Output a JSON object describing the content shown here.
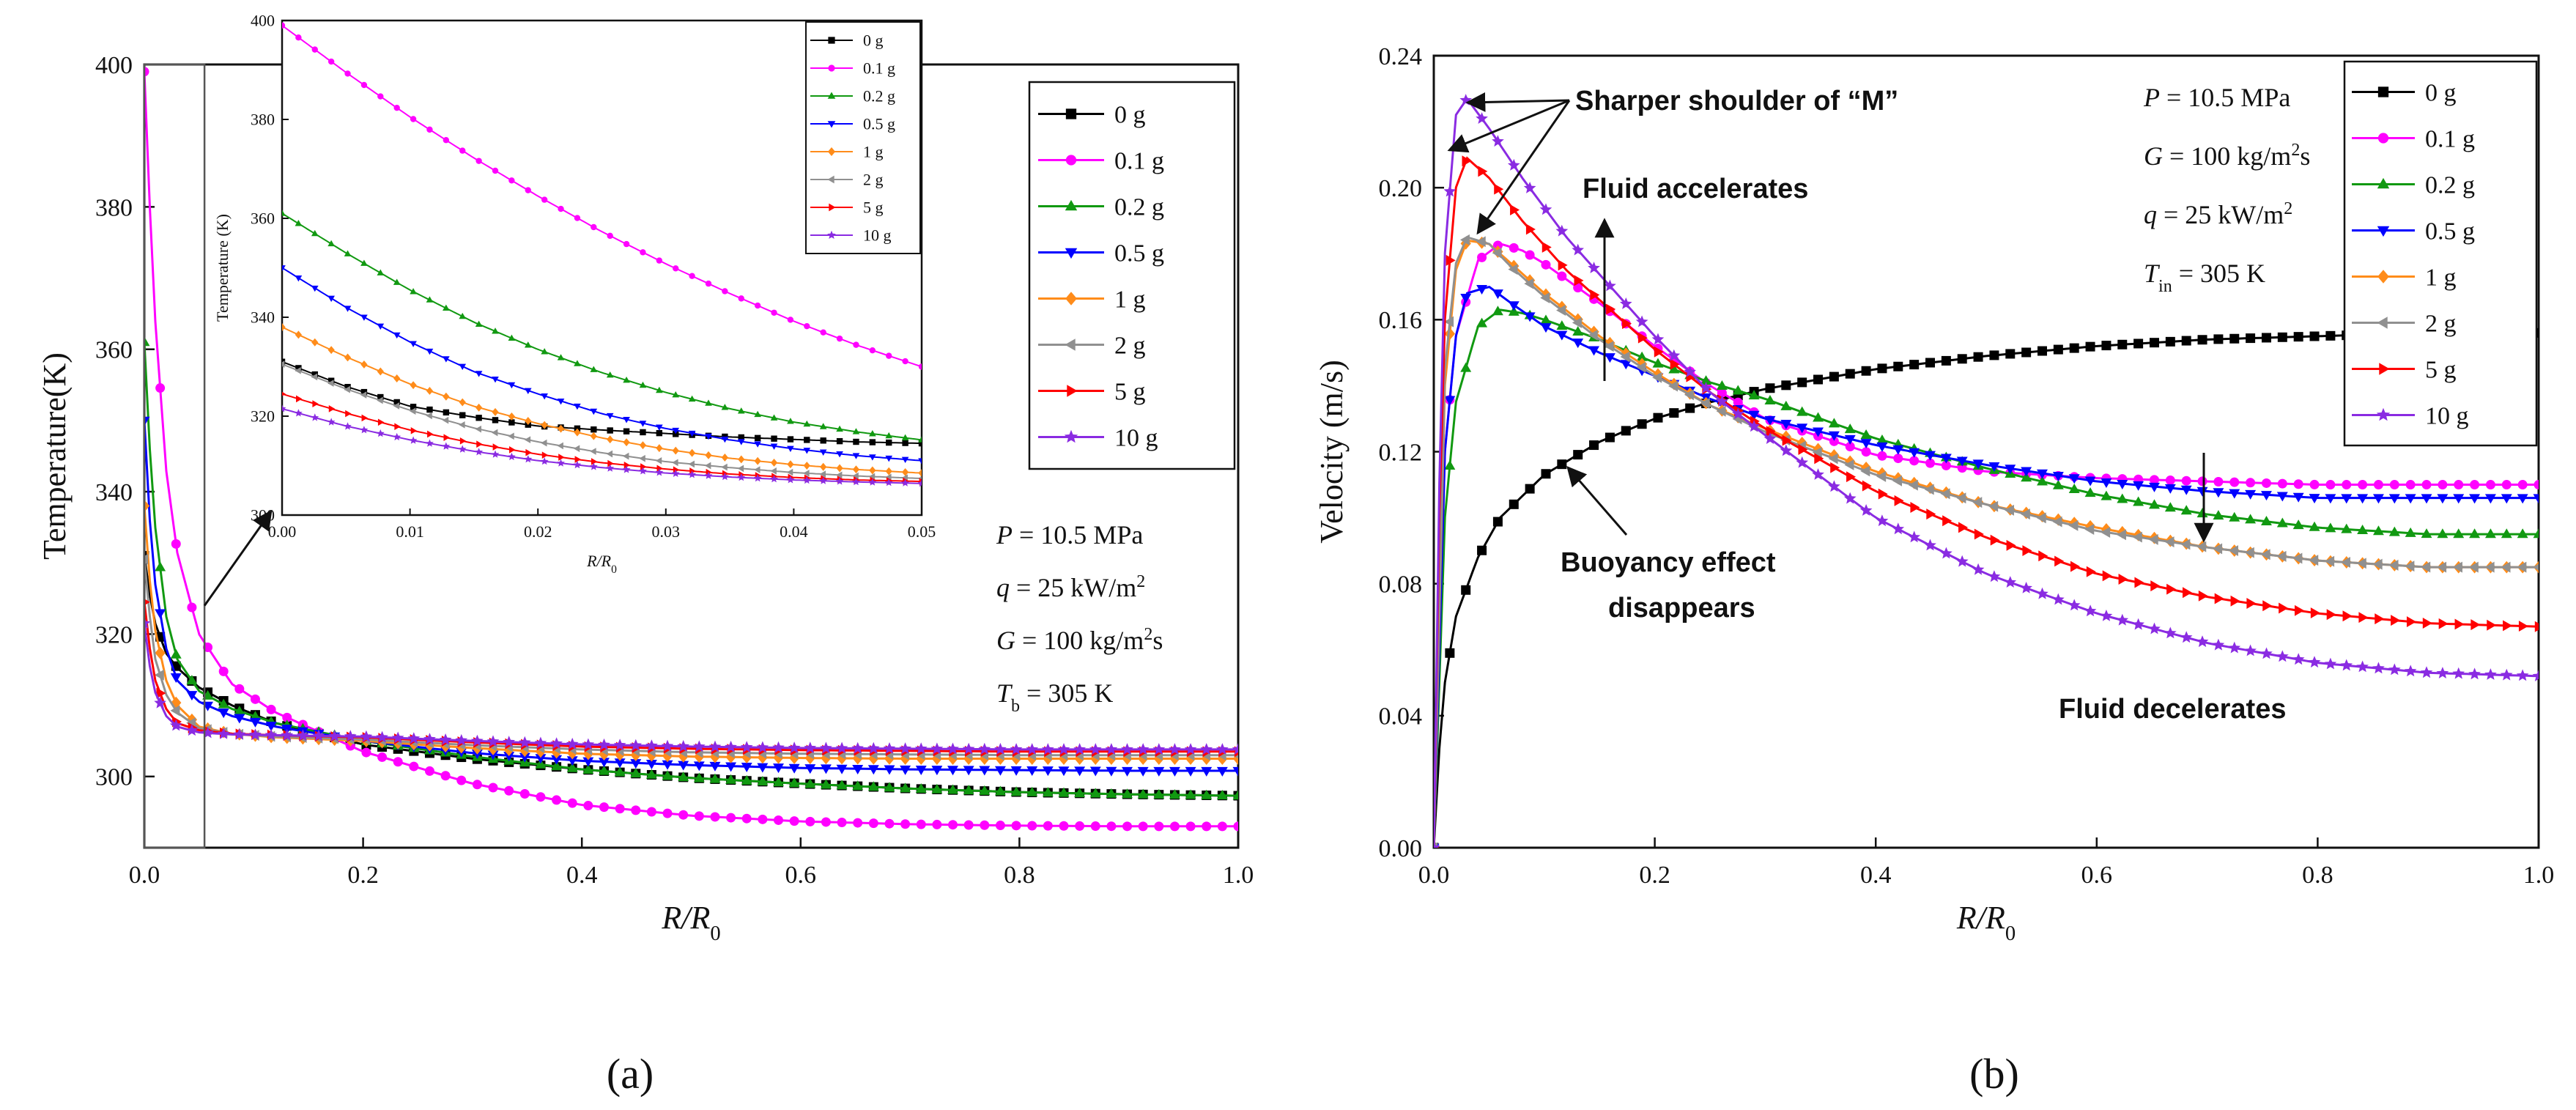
{
  "colors": {
    "0 g": "#000000",
    "0.1 g": "#ff00ff",
    "0.2 g": "#119911",
    "0.5 g": "#0000ff",
    "1 g": "#ff8c1a",
    "2 g": "#909090",
    "5 g": "#ff0000",
    "10 g": "#8a2be2"
  },
  "markers": {
    "0 g": "square",
    "0.1 g": "circle",
    "0.2 g": "triangle-up",
    "0.5 g": "triangle-down",
    "1 g": "diamond",
    "2 g": "triangle-left",
    "5 g": "triangle-right",
    "10 g": "star"
  },
  "captions": {
    "a": "(a)",
    "b": "(b)"
  },
  "chart_data": [
    {
      "id": "a",
      "type": "line",
      "title": "",
      "xlabel": "R/R0",
      "xlabel_main": "R/R",
      "xlabel_sub": "0",
      "ylabel": "Temperature(K)",
      "xlim": [
        0,
        1.0
      ],
      "ylim": [
        290,
        400
      ],
      "xticks": [
        "0.0",
        "0.2",
        "0.4",
        "0.6",
        "0.8",
        "1.0"
      ],
      "yticks": [
        "300",
        "320",
        "340",
        "360",
        "380",
        "400"
      ],
      "legend": [
        "0 g",
        "0.1 g",
        "0.2 g",
        "0.5 g",
        "1 g",
        "2 g",
        "5 g",
        "10 g"
      ],
      "legend_position": "top-right",
      "params": [
        {
          "sym": "P",
          "sub": "",
          "sup": "",
          "rest": " = 10.5 MPa"
        },
        {
          "sym": "q",
          "sub": "",
          "sup": "2",
          "rest": " = 25 kW/m"
        },
        {
          "sym": "G",
          "sub": "",
          "sup": "2",
          "rest": " = 100 kg/m",
          "tail": "s"
        },
        {
          "sym": "T",
          "sub": "b",
          "sup": "",
          "rest": " = 305 K"
        }
      ],
      "series": [
        {
          "name": "0 g",
          "x": [
            0,
            0.005,
            0.01,
            0.02,
            0.03,
            0.05,
            0.08,
            0.12,
            0.2,
            0.3,
            0.4,
            0.5,
            0.6,
            0.7,
            0.8,
            0.9,
            1.0
          ],
          "y": [
            331,
            325.5,
            321.5,
            317.3,
            315.3,
            312.5,
            310,
            307.5,
            304.5,
            302.5,
            301,
            299.8,
            299,
            298.3,
            297.8,
            297.5,
            297.3
          ]
        },
        {
          "name": "0.1 g",
          "x": [
            0,
            0.005,
            0.01,
            0.02,
            0.03,
            0.05,
            0.08,
            0.12,
            0.2,
            0.3,
            0.4,
            0.5,
            0.6,
            0.7,
            0.8,
            0.9,
            1.0
          ],
          "y": [
            399,
            380,
            364,
            343,
            331.5,
            320,
            313,
            309,
            303.5,
            299,
            296,
            294.5,
            293.7,
            293.3,
            293.1,
            293,
            293
          ]
        },
        {
          "name": "0.2 g",
          "x": [
            0,
            0.005,
            0.01,
            0.02,
            0.03,
            0.05,
            0.08,
            0.12,
            0.2,
            0.3,
            0.4,
            0.5,
            0.6,
            0.7,
            0.8,
            0.9,
            1.0
          ],
          "y": [
            361,
            346,
            335,
            322.5,
            316.5,
            312,
            309.5,
            307.5,
            305,
            302.8,
            301,
            299.8,
            299,
            298.3,
            297.8,
            297.5,
            297.3
          ]
        },
        {
          "name": "0.5 g",
          "x": [
            0,
            0.005,
            0.01,
            0.02,
            0.03,
            0.05,
            0.08,
            0.12,
            0.2,
            0.3,
            0.4,
            0.5,
            0.6,
            0.7,
            0.8,
            0.9,
            1.0
          ],
          "y": [
            350,
            336,
            327,
            318,
            313.5,
            310.5,
            308.5,
            307,
            305,
            303.3,
            302.2,
            301.6,
            301.2,
            301,
            300.9,
            300.8,
            300.8
          ]
        },
        {
          "name": "1 g",
          "x": [
            0,
            0.005,
            0.01,
            0.02,
            0.03,
            0.05,
            0.08,
            0.12,
            0.2,
            0.3,
            0.4,
            0.5,
            0.6,
            0.7,
            0.8,
            0.9,
            1.0
          ],
          "y": [
            338,
            327.5,
            320.5,
            313.5,
            310,
            307,
            306,
            305.5,
            305,
            304,
            303.2,
            302.8,
            302.6,
            302.5,
            302.5,
            302.5,
            302.5
          ]
        },
        {
          "name": "2 g",
          "x": [
            0,
            0.005,
            0.01,
            0.02,
            0.03,
            0.05,
            0.08,
            0.12,
            0.2,
            0.3,
            0.4,
            0.5,
            0.6,
            0.7,
            0.8,
            0.9,
            1.0
          ],
          "y": [
            330.5,
            322.5,
            316.5,
            311.5,
            309,
            306.8,
            306,
            305.6,
            305.2,
            304.4,
            303.8,
            303.4,
            303.2,
            303.1,
            303,
            303,
            303
          ]
        },
        {
          "name": "5 g",
          "x": [
            0,
            0.005,
            0.01,
            0.02,
            0.03,
            0.05,
            0.08,
            0.12,
            0.2,
            0.3,
            0.4,
            0.5,
            0.6,
            0.7,
            0.8,
            0.9,
            1.0
          ],
          "y": [
            324.5,
            318,
            313.5,
            309.5,
            307.5,
            306.5,
            306,
            305.8,
            305.5,
            304.8,
            304.2,
            303.9,
            303.7,
            303.6,
            303.5,
            303.5,
            303.5
          ]
        },
        {
          "name": "10 g",
          "x": [
            0,
            0.005,
            0.01,
            0.02,
            0.03,
            0.05,
            0.08,
            0.12,
            0.2,
            0.3,
            0.4,
            0.5,
            0.6,
            0.7,
            0.8,
            0.9,
            1.0
          ],
          "y": [
            321.5,
            315.5,
            311.8,
            308.5,
            307,
            306.2,
            305.9,
            305.8,
            305.6,
            305,
            304.5,
            304.2,
            304,
            303.9,
            303.8,
            303.8,
            303.8
          ]
        }
      ]
    },
    {
      "id": "a-inset",
      "type": "line",
      "title": "",
      "xlabel": "R/R0",
      "xlabel_main": "R/R",
      "xlabel_sub": "0",
      "ylabel": "Temperature (K)",
      "xlim": [
        0,
        0.05
      ],
      "ylim": [
        300,
        400
      ],
      "xticks": [
        "0.00",
        "0.01",
        "0.02",
        "0.03",
        "0.04",
        "0.05"
      ],
      "yticks": [
        "300",
        "320",
        "340",
        "360",
        "380",
        "400"
      ],
      "legend": [
        "0 g",
        "0.1 g",
        "0.2 g",
        "0.5 g",
        "1 g",
        "2 g",
        "5 g",
        "10 g"
      ],
      "legend_position": "top-right",
      "series": [
        {
          "name": "0 g",
          "x": [
            0,
            0.005,
            0.01,
            0.015,
            0.02,
            0.025,
            0.03,
            0.035,
            0.04,
            0.045,
            0.05
          ],
          "y": [
            331,
            326,
            322,
            319.8,
            318,
            317.2,
            316.5,
            315.8,
            315.3,
            314.8,
            314.5
          ]
        },
        {
          "name": "0.1 g",
          "x": [
            0,
            0.005,
            0.01,
            0.015,
            0.02,
            0.025,
            0.03,
            0.035,
            0.04,
            0.045,
            0.05
          ],
          "y": [
            399,
            389.5,
            380.5,
            372.2,
            364.5,
            357.3,
            350.8,
            344.8,
            339.2,
            334.3,
            330
          ]
        },
        {
          "name": "0.2 g",
          "x": [
            0,
            0.005,
            0.01,
            0.015,
            0.02,
            0.025,
            0.03,
            0.035,
            0.04,
            0.045,
            0.05
          ],
          "y": [
            361,
            353,
            345.5,
            339,
            333.5,
            328.8,
            324.8,
            321.5,
            318.8,
            316.8,
            315.2
          ]
        },
        {
          "name": "0.5 g",
          "x": [
            0,
            0.005,
            0.01,
            0.015,
            0.02,
            0.025,
            0.03,
            0.035,
            0.04,
            0.045,
            0.05
          ],
          "y": [
            350,
            342,
            335,
            329,
            324.5,
            320.5,
            317.5,
            315.2,
            313.4,
            312,
            311
          ]
        },
        {
          "name": "1 g",
          "x": [
            0,
            0.005,
            0.01,
            0.015,
            0.02,
            0.025,
            0.03,
            0.035,
            0.04,
            0.045,
            0.05
          ],
          "y": [
            338,
            332,
            326.5,
            322,
            318.5,
            315.6,
            313.3,
            311.5,
            310.2,
            309.2,
            308.5
          ]
        },
        {
          "name": "2 g",
          "x": [
            0,
            0.005,
            0.01,
            0.015,
            0.02,
            0.025,
            0.03,
            0.035,
            0.04,
            0.045,
            0.05
          ],
          "y": [
            330.5,
            325.5,
            321.2,
            317.6,
            314.8,
            312.6,
            310.8,
            309.6,
            308.6,
            307.9,
            307.4
          ]
        },
        {
          "name": "5 g",
          "x": [
            0,
            0.005,
            0.01,
            0.015,
            0.02,
            0.025,
            0.03,
            0.035,
            0.04,
            0.045,
            0.05
          ],
          "y": [
            324.5,
            320.6,
            317.2,
            314.5,
            312.3,
            310.6,
            309.3,
            308.3,
            307.6,
            307.1,
            306.8
          ]
        },
        {
          "name": "10 g",
          "x": [
            0,
            0.005,
            0.01,
            0.015,
            0.02,
            0.025,
            0.03,
            0.035,
            0.04,
            0.045,
            0.05
          ],
          "y": [
            321.5,
            318,
            315.2,
            312.9,
            311,
            309.6,
            308.5,
            307.7,
            307.1,
            306.7,
            306.4
          ]
        }
      ]
    },
    {
      "id": "b",
      "type": "line",
      "title": "",
      "xlabel": "R/R0",
      "xlabel_main": "R/R",
      "xlabel_sub": "0",
      "ylabel": "Velocity (m/s)",
      "xlim": [
        0,
        1.0
      ],
      "ylim": [
        0,
        0.24
      ],
      "xticks": [
        "0.0",
        "0.2",
        "0.4",
        "0.6",
        "0.8",
        "1.0"
      ],
      "yticks": [
        "0.00",
        "0.04",
        "0.08",
        "0.12",
        "0.16",
        "0.20",
        "0.24"
      ],
      "legend": [
        "0 g",
        "0.1 g",
        "0.2 g",
        "0.5 g",
        "1 g",
        "2 g",
        "5 g",
        "10 g"
      ],
      "legend_position": "top-right",
      "params": [
        {
          "sym": "P",
          "sub": "",
          "sup": "",
          "rest": " = 10.5 MPa"
        },
        {
          "sym": "G",
          "sub": "",
          "sup": "2",
          "rest": " = 100 kg/m",
          "tail": "s"
        },
        {
          "sym": "q",
          "sub": "",
          "sup": "2",
          "rest": " = 25 kW/m"
        },
        {
          "sym": "T",
          "sub": "in",
          "sup": "",
          "rest": " = 305 K"
        }
      ],
      "annotations": [
        "Sharper shoulder of “M”",
        "Fluid accelerates",
        "Buoyancy effect",
        "disappears",
        "Fluid decelerates"
      ],
      "series": [
        {
          "name": "0 g",
          "x": [
            0,
            0.005,
            0.01,
            0.02,
            0.04,
            0.06,
            0.1,
            0.15,
            0.2,
            0.25,
            0.3,
            0.4,
            0.5,
            0.6,
            0.7,
            0.8,
            0.9,
            1.0
          ],
          "y": [
            0,
            0.03,
            0.05,
            0.07,
            0.088,
            0.1,
            0.113,
            0.123,
            0.13,
            0.135,
            0.139,
            0.145,
            0.149,
            0.152,
            0.154,
            0.155,
            0.156,
            0.156
          ]
        },
        {
          "name": "0.1 g",
          "x": [
            0,
            0.01,
            0.02,
            0.04,
            0.06,
            0.08,
            0.1,
            0.15,
            0.2,
            0.25,
            0.3,
            0.4,
            0.5,
            0.6,
            0.7,
            0.8,
            0.9,
            1.0
          ],
          "y": [
            0,
            0.12,
            0.155,
            0.178,
            0.183,
            0.181,
            0.177,
            0.165,
            0.152,
            0.14,
            0.13,
            0.119,
            0.114,
            0.112,
            0.111,
            0.11,
            0.11,
            0.11
          ]
        },
        {
          "name": "0.2 g",
          "x": [
            0,
            0.01,
            0.02,
            0.04,
            0.06,
            0.08,
            0.1,
            0.15,
            0.2,
            0.25,
            0.3,
            0.4,
            0.5,
            0.6,
            0.7,
            0.8,
            0.9,
            1.0
          ],
          "y": [
            0,
            0.1,
            0.135,
            0.158,
            0.163,
            0.162,
            0.16,
            0.154,
            0.147,
            0.141,
            0.136,
            0.124,
            0.115,
            0.107,
            0.101,
            0.097,
            0.095,
            0.095
          ]
        },
        {
          "name": "0.5 g",
          "x": [
            0,
            0.01,
            0.02,
            0.03,
            0.05,
            0.07,
            0.1,
            0.15,
            0.2,
            0.25,
            0.3,
            0.4,
            0.5,
            0.6,
            0.7,
            0.8,
            0.9,
            1.0
          ],
          "y": [
            0,
            0.12,
            0.155,
            0.168,
            0.17,
            0.165,
            0.158,
            0.15,
            0.143,
            0.136,
            0.13,
            0.122,
            0.116,
            0.111,
            0.108,
            0.106,
            0.106,
            0.106
          ]
        },
        {
          "name": "1 g",
          "x": [
            0,
            0.01,
            0.02,
            0.03,
            0.05,
            0.07,
            0.1,
            0.15,
            0.2,
            0.25,
            0.3,
            0.4,
            0.5,
            0.6,
            0.7,
            0.8,
            0.9,
            1.0
          ],
          "y": [
            0,
            0.14,
            0.175,
            0.184,
            0.183,
            0.177,
            0.168,
            0.155,
            0.144,
            0.134,
            0.127,
            0.114,
            0.104,
            0.097,
            0.091,
            0.087,
            0.085,
            0.085
          ]
        },
        {
          "name": "2 g",
          "x": [
            0,
            0.01,
            0.02,
            0.03,
            0.05,
            0.07,
            0.1,
            0.15,
            0.2,
            0.25,
            0.3,
            0.4,
            0.5,
            0.6,
            0.7,
            0.8,
            0.9,
            1.0
          ],
          "y": [
            0,
            0.145,
            0.177,
            0.185,
            0.183,
            0.176,
            0.167,
            0.154,
            0.143,
            0.134,
            0.126,
            0.113,
            0.104,
            0.096,
            0.091,
            0.087,
            0.085,
            0.085
          ]
        },
        {
          "name": "5 g",
          "x": [
            0,
            0.005,
            0.01,
            0.02,
            0.03,
            0.05,
            0.08,
            0.12,
            0.2,
            0.25,
            0.3,
            0.4,
            0.5,
            0.6,
            0.7,
            0.8,
            0.9,
            1.0
          ],
          "y": [
            0,
            0.1,
            0.16,
            0.2,
            0.209,
            0.203,
            0.19,
            0.175,
            0.151,
            0.138,
            0.127,
            0.108,
            0.094,
            0.083,
            0.076,
            0.071,
            0.068,
            0.067
          ]
        },
        {
          "name": "10 g",
          "x": [
            0,
            0.005,
            0.01,
            0.02,
            0.03,
            0.05,
            0.08,
            0.12,
            0.2,
            0.25,
            0.3,
            0.4,
            0.5,
            0.6,
            0.7,
            0.8,
            0.9,
            1.0
          ],
          "y": [
            0,
            0.11,
            0.18,
            0.222,
            0.227,
            0.218,
            0.203,
            0.185,
            0.155,
            0.138,
            0.125,
            0.1,
            0.083,
            0.071,
            0.062,
            0.056,
            0.053,
            0.052
          ]
        }
      ]
    }
  ]
}
